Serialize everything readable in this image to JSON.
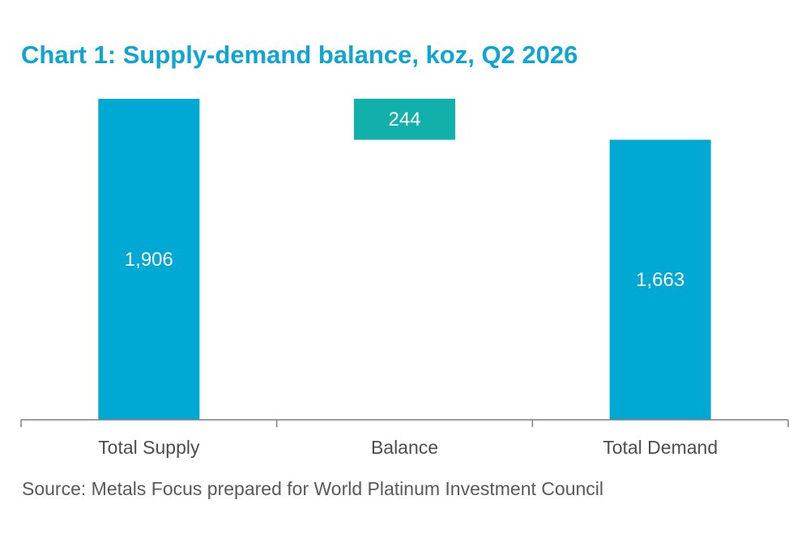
{
  "title": "Chart 1: Supply-demand balance, koz, Q2 2026",
  "source": "Source: Metals Focus prepared for World Platinum Investment Council",
  "colors": {
    "title": "#0ea5d2",
    "supply_demand": "#00a8d4",
    "balance": "#11b0aa",
    "axis": "#7f7f7f"
  },
  "chart_data": {
    "type": "bar",
    "subtype": "waterfall",
    "categories": [
      "Total Supply",
      "Balance",
      "Total Demand"
    ],
    "values": [
      1906,
      244,
      1663
    ],
    "value_labels": [
      "1,906",
      "244",
      "1,663"
    ],
    "bases": [
      0,
      1663,
      0
    ],
    "title": "Chart 1: Supply-demand balance, koz, Q2 2026",
    "xlabel": "",
    "ylabel": "",
    "ylim": [
      0,
      1906
    ],
    "grid": false,
    "legend": "none"
  }
}
